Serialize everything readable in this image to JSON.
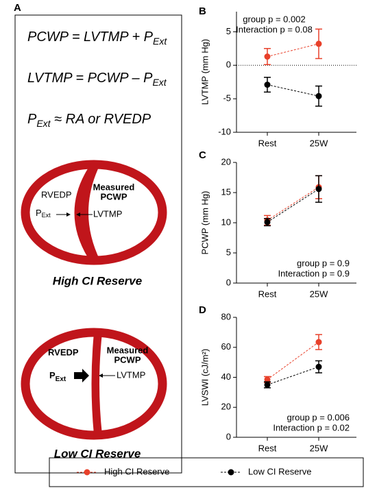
{
  "diagram": {
    "panel": "A",
    "equations": [
      [
        "PCWP = LVTMP + P",
        "Ext"
      ],
      [
        "LVTMP = PCWP – P",
        "Ext"
      ],
      [
        "P",
        "Ext",
        " ≈ RA or RVEDP"
      ]
    ],
    "high": {
      "rvedp": "RVEDP",
      "pext": [
        "P",
        "Ext"
      ],
      "measured": [
        "Measured",
        "PCWP"
      ],
      "lvtmp": "LVTMP",
      "caption": "High CI Reserve"
    },
    "low": {
      "rvedp": "RVEDP",
      "pext": [
        "P",
        "Ext"
      ],
      "measured": [
        "Measured",
        "PCWP"
      ],
      "lvtmp": "LVTMP",
      "caption": "Low CI Reserve"
    }
  },
  "chart_data": [
    {
      "type": "line",
      "panel": "B",
      "ylabel": "LVTMP (mm Hg)",
      "categories": [
        "Rest",
        "25W"
      ],
      "ylim": [
        -10,
        8
      ],
      "yticks": [
        -10,
        -5,
        0,
        5
      ],
      "hlines": [
        0
      ],
      "annotations": [
        "group p = 0.002",
        "Interaction p = 0.08"
      ],
      "series": [
        {
          "name": "High CI Reserve",
          "color": "#e8402a",
          "values": [
            1.3,
            3.2
          ],
          "errors": [
            1.2,
            2.2
          ]
        },
        {
          "name": "Low CI Reserve",
          "color": "#000000",
          "values": [
            -2.9,
            -4.6
          ],
          "errors": [
            1.1,
            1.5
          ]
        }
      ]
    },
    {
      "type": "line",
      "panel": "C",
      "ylabel": "PCWP (mm Hg)",
      "categories": [
        "Rest",
        "25W"
      ],
      "ylim": [
        0,
        20
      ],
      "yticks": [
        0,
        5,
        10,
        15,
        20
      ],
      "annotations": [
        "group p = 0.9",
        "Interaction p = 0.9"
      ],
      "series": [
        {
          "color": "#e8402a",
          "values": [
            10.4,
            15.9
          ],
          "errors": [
            0.8,
            1.9
          ]
        },
        {
          "color": "#000000",
          "values": [
            10.1,
            15.6
          ],
          "errors": [
            0.6,
            2.2
          ]
        }
      ]
    },
    {
      "type": "line",
      "panel": "D",
      "ylabel": "LVSWI (cJ/m²)",
      "categories": [
        "Rest",
        "25W"
      ],
      "ylim": [
        0,
        80
      ],
      "yticks": [
        0,
        20,
        40,
        60,
        80
      ],
      "annotations": [
        "group p = 0.006",
        "Interaction p = 0.02"
      ],
      "series": [
        {
          "color": "#e8402a",
          "values": [
            38.5,
            63.5
          ],
          "errors": [
            2,
            5
          ]
        },
        {
          "color": "#000000",
          "values": [
            35,
            47
          ],
          "errors": [
            2,
            4
          ]
        }
      ]
    }
  ]
}
